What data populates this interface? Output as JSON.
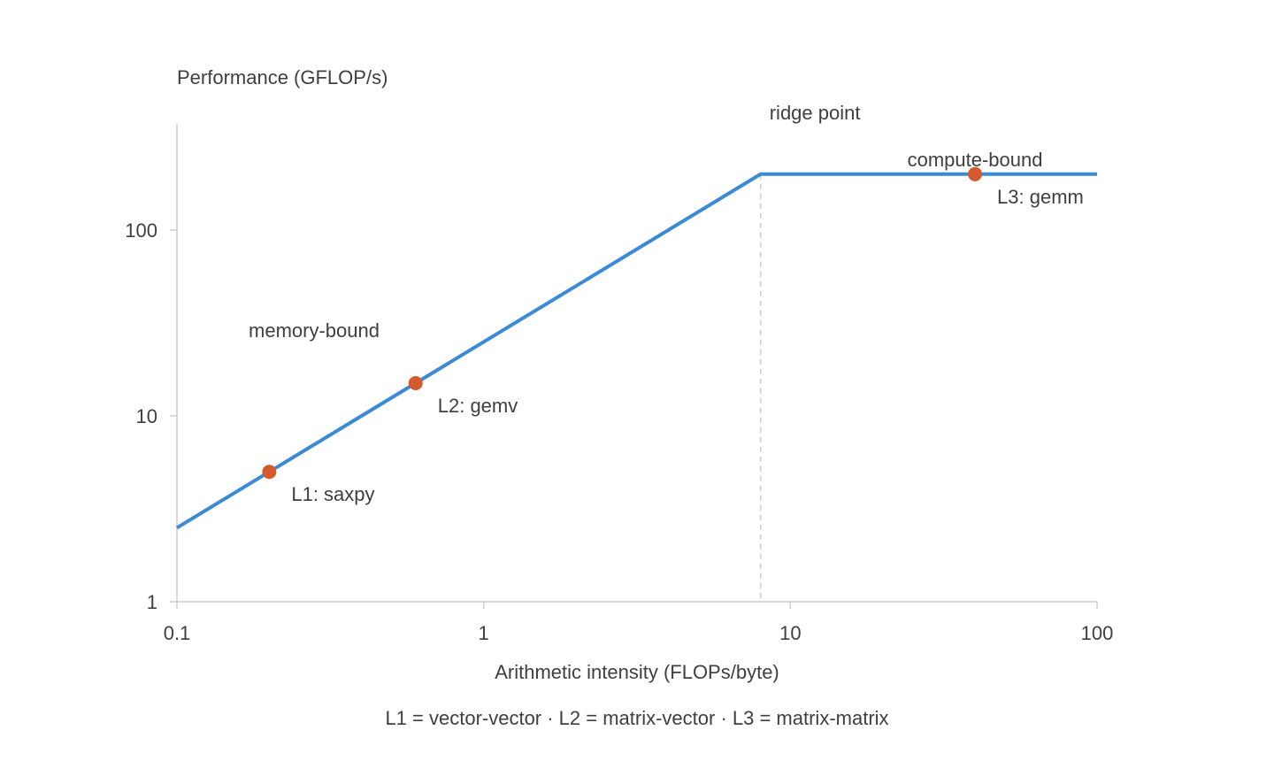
{
  "chart_data": {
    "type": "line",
    "x_scale": "log",
    "y_scale": "log",
    "xlabel": "Arithmetic intensity (FLOPs/byte)",
    "ylabel": "Performance (GFLOP/s)",
    "xlim": [
      0.1,
      100
    ],
    "ylim": [
      1,
      300
    ],
    "x_ticks": [
      0.1,
      1,
      10,
      100
    ],
    "x_tick_labels": [
      "0.1",
      "1",
      "10",
      "100"
    ],
    "y_ticks": [
      1,
      10,
      100
    ],
    "y_tick_labels": [
      "1",
      "10",
      "100"
    ],
    "roofline": {
      "x": [
        0.1,
        8,
        100
      ],
      "y": [
        2.5,
        200,
        200
      ]
    },
    "ridge_point": {
      "x": 8,
      "label": "ridge point"
    },
    "regions": [
      {
        "label": "memory-bound",
        "x": 0.28,
        "y": 29
      },
      {
        "label": "compute-bound",
        "x": 40,
        "y": 240
      }
    ],
    "points": [
      {
        "label": "L1: saxpy",
        "x": 0.2,
        "y": 5
      },
      {
        "label": "L2: gemv",
        "x": 0.6,
        "y": 15
      },
      {
        "label": "L3: gemm",
        "x": 40,
        "y": 200
      }
    ],
    "footnote": "L1 = vector-vector · L2 = matrix-vector · L3 = matrix-matrix",
    "grid": false,
    "colors": {
      "line": "#3a8ad6",
      "point": "#d45a2e",
      "axis": "#cccccc",
      "ridge": "#cccccc",
      "text": "#3f3f3f"
    }
  }
}
